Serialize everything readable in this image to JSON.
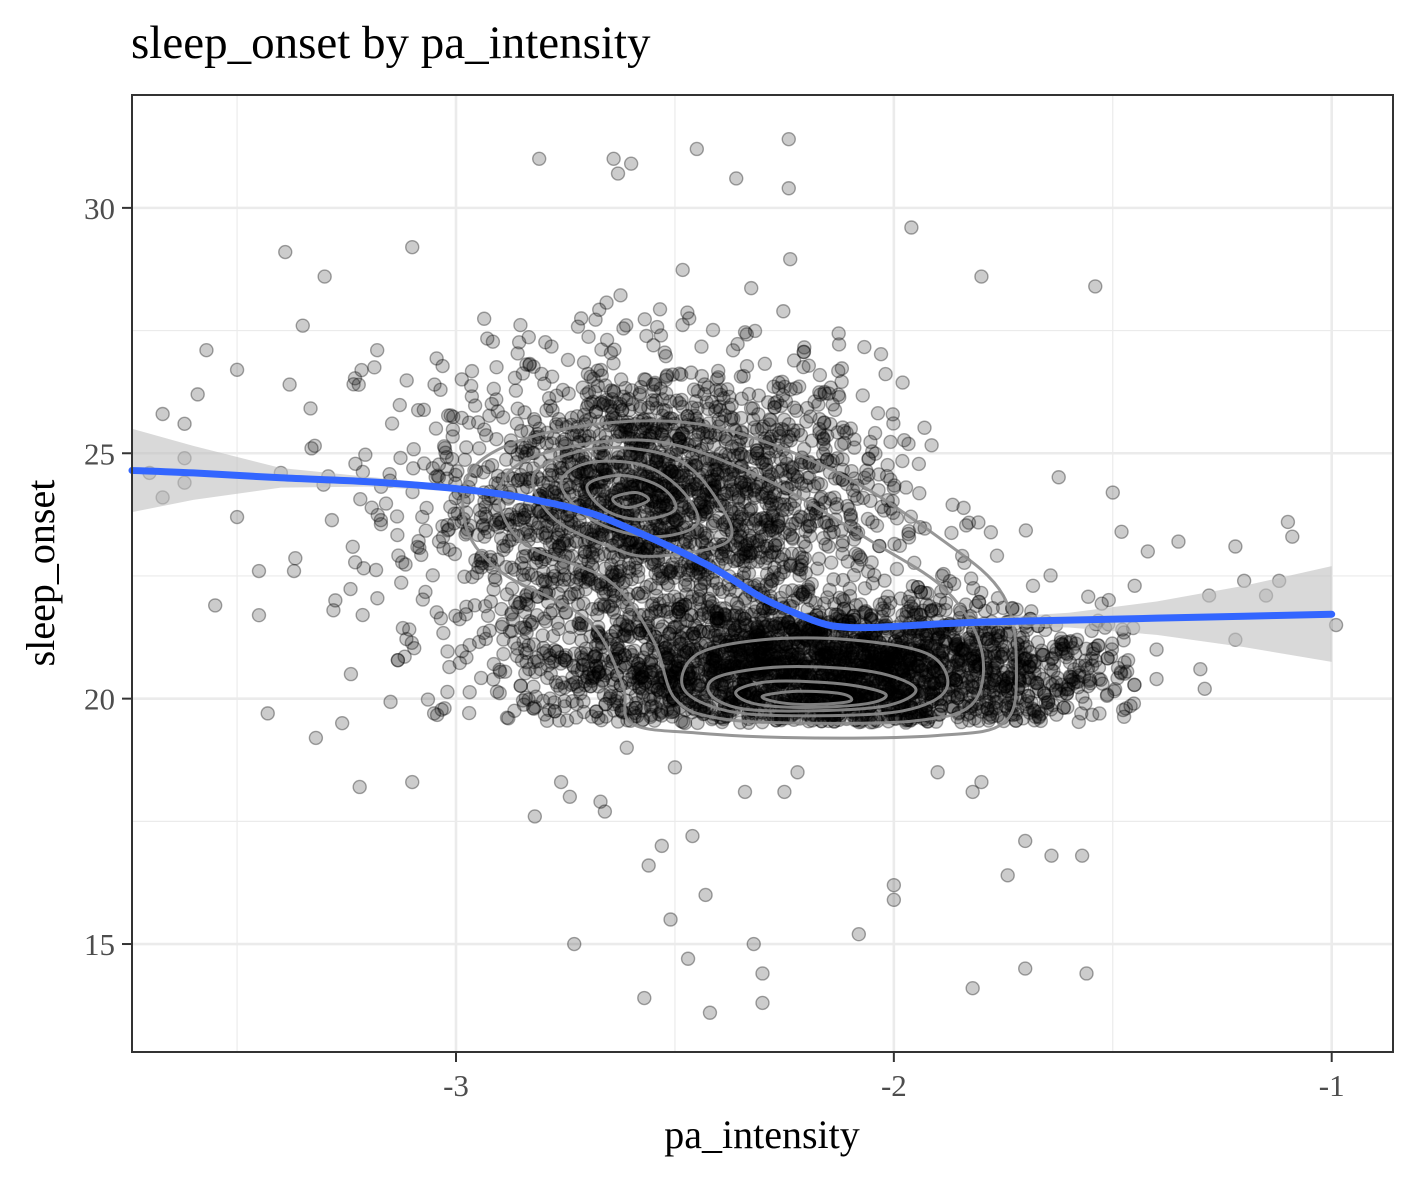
{
  "chart_data": {
    "type": "scatter",
    "title": "sleep_onset by pa_intensity",
    "xlabel": "pa_intensity",
    "ylabel": "sleep_onset",
    "xlim": [
      -3.74,
      -0.86
    ],
    "ylim": [
      12.8,
      32.3
    ],
    "x_ticks": [
      -3,
      -2,
      -1
    ],
    "x_tick_labels": [
      "-3",
      "-2",
      "-1"
    ],
    "y_ticks": [
      15,
      20,
      25,
      30
    ],
    "y_tick_labels": [
      "15",
      "20",
      "25",
      "30"
    ],
    "grid": true,
    "legend": "none",
    "point_color": "#000000",
    "point_alpha": 0.2,
    "point_count_estimate": 5000,
    "dense_cluster_points": [
      {
        "x_mean": -2.55,
        "y_mean": 24.0,
        "x_sd": 0.26,
        "y_sd": 1.5,
        "weight": 0.45
      },
      {
        "x_mean": -2.15,
        "y_mean": 20.6,
        "x_sd": 0.32,
        "y_sd": 0.7,
        "weight": 0.55
      }
    ],
    "outlier_points": [
      {
        "x": -3.7,
        "y": 24.6
      },
      {
        "x": -3.67,
        "y": 24.1
      },
      {
        "x": -3.67,
        "y": 25.8
      },
      {
        "x": -3.62,
        "y": 25.6
      },
      {
        "x": -3.62,
        "y": 24.4
      },
      {
        "x": -3.62,
        "y": 24.9
      },
      {
        "x": -3.59,
        "y": 26.2
      },
      {
        "x": -3.57,
        "y": 27.1
      },
      {
        "x": -3.55,
        "y": 21.9
      },
      {
        "x": -3.5,
        "y": 26.7
      },
      {
        "x": -3.5,
        "y": 23.7
      },
      {
        "x": -3.45,
        "y": 21.7
      },
      {
        "x": -3.45,
        "y": 22.6
      },
      {
        "x": -3.43,
        "y": 19.7
      },
      {
        "x": -3.4,
        "y": 24.6
      },
      {
        "x": -3.39,
        "y": 29.1
      },
      {
        "x": -3.38,
        "y": 26.4
      },
      {
        "x": -3.37,
        "y": 22.6
      },
      {
        "x": -3.35,
        "y": 27.6
      },
      {
        "x": -3.33,
        "y": 25.1
      },
      {
        "x": -3.32,
        "y": 19.2
      },
      {
        "x": -3.3,
        "y": 28.6
      },
      {
        "x": -3.28,
        "y": 21.8
      },
      {
        "x": -3.26,
        "y": 19.5
      },
      {
        "x": -3.24,
        "y": 20.5
      },
      {
        "x": -3.22,
        "y": 18.2
      },
      {
        "x": -3.18,
        "y": 27.1
      },
      {
        "x": -3.1,
        "y": 18.3
      },
      {
        "x": -3.1,
        "y": 29.2
      },
      {
        "x": -3.05,
        "y": 19.7
      },
      {
        "x": -2.82,
        "y": 17.6
      },
      {
        "x": -2.81,
        "y": 31.0
      },
      {
        "x": -2.76,
        "y": 18.3
      },
      {
        "x": -2.74,
        "y": 18.0
      },
      {
        "x": -2.73,
        "y": 15.0
      },
      {
        "x": -2.67,
        "y": 17.9
      },
      {
        "x": -2.66,
        "y": 17.7
      },
      {
        "x": -2.64,
        "y": 31.0
      },
      {
        "x": -2.63,
        "y": 30.7
      },
      {
        "x": -2.61,
        "y": 19.0
      },
      {
        "x": -2.6,
        "y": 30.9
      },
      {
        "x": -2.57,
        "y": 13.9
      },
      {
        "x": -2.56,
        "y": 16.6
      },
      {
        "x": -2.53,
        "y": 17.0
      },
      {
        "x": -2.51,
        "y": 15.5
      },
      {
        "x": -2.5,
        "y": 18.6
      },
      {
        "x": -2.47,
        "y": 14.7
      },
      {
        "x": -2.46,
        "y": 17.2
      },
      {
        "x": -2.45,
        "y": 31.2
      },
      {
        "x": -2.43,
        "y": 16.0
      },
      {
        "x": -2.42,
        "y": 13.6
      },
      {
        "x": -2.36,
        "y": 30.6
      },
      {
        "x": -2.34,
        "y": 18.1
      },
      {
        "x": -2.32,
        "y": 15.0
      },
      {
        "x": -2.3,
        "y": 14.4
      },
      {
        "x": -2.3,
        "y": 13.8
      },
      {
        "x": -2.24,
        "y": 31.4
      },
      {
        "x": -2.24,
        "y": 30.4
      },
      {
        "x": -2.25,
        "y": 18.1
      },
      {
        "x": -2.22,
        "y": 18.5
      },
      {
        "x": -2.08,
        "y": 15.2
      },
      {
        "x": -2.0,
        "y": 16.2
      },
      {
        "x": -2.0,
        "y": 15.9
      },
      {
        "x": -1.96,
        "y": 29.6
      },
      {
        "x": -1.9,
        "y": 18.5
      },
      {
        "x": -1.8,
        "y": 28.6
      },
      {
        "x": -1.8,
        "y": 18.3
      },
      {
        "x": -1.82,
        "y": 18.1
      },
      {
        "x": -1.82,
        "y": 14.1
      },
      {
        "x": -1.74,
        "y": 16.4
      },
      {
        "x": -1.7,
        "y": 17.1
      },
      {
        "x": -1.7,
        "y": 14.5
      },
      {
        "x": -1.64,
        "y": 16.8
      },
      {
        "x": -1.57,
        "y": 16.8
      },
      {
        "x": -1.56,
        "y": 14.4
      },
      {
        "x": -1.54,
        "y": 28.4
      },
      {
        "x": -1.5,
        "y": 24.2
      },
      {
        "x": -1.48,
        "y": 23.4
      },
      {
        "x": -1.47,
        "y": 19.8
      },
      {
        "x": -1.45,
        "y": 22.3
      },
      {
        "x": -1.42,
        "y": 23.0
      },
      {
        "x": -1.4,
        "y": 20.4
      },
      {
        "x": -1.4,
        "y": 21.0
      },
      {
        "x": -1.35,
        "y": 23.2
      },
      {
        "x": -1.3,
        "y": 20.6
      },
      {
        "x": -1.29,
        "y": 20.2
      },
      {
        "x": -1.28,
        "y": 22.1
      },
      {
        "x": -1.22,
        "y": 23.1
      },
      {
        "x": -1.22,
        "y": 21.2
      },
      {
        "x": -1.2,
        "y": 22.4
      },
      {
        "x": -1.15,
        "y": 22.1
      },
      {
        "x": -1.12,
        "y": 22.4
      },
      {
        "x": -1.1,
        "y": 23.6
      },
      {
        "x": -1.09,
        "y": 23.3
      },
      {
        "x": -0.99,
        "y": 21.5
      }
    ],
    "smooth_line": {
      "color": "#3366FF",
      "x": [
        -3.74,
        -3.6,
        -3.4,
        -3.2,
        -3.0,
        -2.85,
        -2.7,
        -2.6,
        -2.5,
        -2.4,
        -2.3,
        -2.2,
        -2.15,
        -2.1,
        -2.05,
        -2.0,
        -1.9,
        -1.8,
        -1.6,
        -1.4,
        -1.2,
        -1.0
      ],
      "y": [
        24.65,
        24.6,
        24.5,
        24.42,
        24.28,
        24.1,
        23.8,
        23.45,
        23.05,
        22.6,
        22.05,
        21.65,
        21.5,
        21.45,
        21.45,
        21.47,
        21.52,
        21.56,
        21.6,
        21.64,
        21.68,
        21.72
      ]
    },
    "confidence_band": {
      "color": "#bfbfbf",
      "x": [
        -3.74,
        -3.6,
        -3.4,
        -3.2,
        -3.0,
        -2.85,
        -2.7,
        -2.6,
        -2.5,
        -2.4,
        -2.3,
        -2.2,
        -2.15,
        -2.1,
        -2.05,
        -2.0,
        -1.9,
        -1.8,
        -1.6,
        -1.4,
        -1.2,
        -1.0
      ],
      "lower": [
        23.8,
        24.05,
        24.3,
        24.32,
        24.22,
        24.05,
        23.75,
        23.4,
        23.0,
        22.55,
        22.0,
        21.6,
        21.45,
        21.4,
        21.4,
        21.42,
        21.46,
        21.48,
        21.45,
        21.3,
        21.05,
        20.75
      ],
      "upper": [
        25.5,
        25.15,
        24.7,
        24.52,
        24.34,
        24.15,
        23.85,
        23.5,
        23.1,
        22.65,
        22.1,
        21.7,
        21.55,
        21.5,
        21.5,
        21.52,
        21.58,
        21.64,
        21.75,
        21.98,
        22.3,
        22.7
      ]
    },
    "density_contours": {
      "color": "#8c8c8c",
      "levels": [
        [
          [
            -2.2,
            19.2
          ],
          [
            -1.9,
            19.25
          ],
          [
            -1.75,
            19.5
          ],
          [
            -1.72,
            20.5
          ],
          [
            -1.75,
            22.1
          ],
          [
            -1.9,
            23.3
          ],
          [
            -2.15,
            24.7
          ],
          [
            -2.45,
            25.6
          ],
          [
            -2.75,
            25.5
          ],
          [
            -2.95,
            24.8
          ],
          [
            -2.98,
            23.6
          ],
          [
            -2.9,
            22.6
          ],
          [
            -2.7,
            21.6
          ],
          [
            -2.62,
            20.3
          ],
          [
            -2.6,
            19.5
          ],
          [
            -2.45,
            19.3
          ]
        ],
        [
          [
            -2.2,
            19.5
          ],
          [
            -1.95,
            19.55
          ],
          [
            -1.82,
            19.9
          ],
          [
            -1.8,
            21.0
          ],
          [
            -1.88,
            22.2
          ],
          [
            -2.05,
            23.2
          ],
          [
            -2.3,
            24.5
          ],
          [
            -2.55,
            25.25
          ],
          [
            -2.8,
            25.0
          ],
          [
            -2.9,
            24.3
          ],
          [
            -2.85,
            23.2
          ],
          [
            -2.65,
            22.4
          ],
          [
            -2.55,
            21.2
          ],
          [
            -2.5,
            20.0
          ],
          [
            -2.4,
            19.6
          ]
        ],
        [
          [
            -2.2,
            19.65
          ],
          [
            -1.98,
            19.75
          ],
          [
            -1.88,
            20.2
          ],
          [
            -1.92,
            20.9
          ],
          [
            -2.1,
            21.2
          ],
          [
            -2.3,
            21.2
          ],
          [
            -2.45,
            20.9
          ],
          [
            -2.48,
            20.2
          ],
          [
            -2.38,
            19.75
          ]
        ],
        [
          [
            -2.2,
            19.75
          ],
          [
            -2.02,
            19.85
          ],
          [
            -1.95,
            20.2
          ],
          [
            -2.05,
            20.55
          ],
          [
            -2.25,
            20.65
          ],
          [
            -2.4,
            20.45
          ],
          [
            -2.42,
            20.1
          ],
          [
            -2.35,
            19.8
          ]
        ],
        [
          [
            -2.2,
            19.82
          ],
          [
            -2.06,
            19.9
          ],
          [
            -2.02,
            20.1
          ],
          [
            -2.12,
            20.3
          ],
          [
            -2.28,
            20.35
          ],
          [
            -2.36,
            20.15
          ],
          [
            -2.32,
            19.9
          ]
        ],
        [
          [
            -2.18,
            19.88
          ],
          [
            -2.1,
            19.95
          ],
          [
            -2.12,
            20.1
          ],
          [
            -2.22,
            20.15
          ],
          [
            -2.3,
            20.05
          ],
          [
            -2.26,
            19.92
          ]
        ],
        [
          [
            -2.55,
            22.9
          ],
          [
            -2.38,
            23.2
          ],
          [
            -2.4,
            24.0
          ],
          [
            -2.5,
            24.9
          ],
          [
            -2.68,
            25.1
          ],
          [
            -2.82,
            24.6
          ],
          [
            -2.78,
            23.7
          ],
          [
            -2.65,
            23.1
          ]
        ],
        [
          [
            -2.55,
            23.3
          ],
          [
            -2.45,
            23.55
          ],
          [
            -2.48,
            24.2
          ],
          [
            -2.57,
            24.75
          ],
          [
            -2.7,
            24.8
          ],
          [
            -2.76,
            24.35
          ],
          [
            -2.68,
            23.6
          ]
        ],
        [
          [
            -2.58,
            23.65
          ],
          [
            -2.5,
            23.85
          ],
          [
            -2.53,
            24.3
          ],
          [
            -2.62,
            24.55
          ],
          [
            -2.7,
            24.35
          ],
          [
            -2.66,
            23.85
          ]
        ],
        [
          [
            -2.6,
            23.9
          ],
          [
            -2.56,
            24.05
          ],
          [
            -2.59,
            24.2
          ],
          [
            -2.64,
            24.1
          ],
          [
            -2.63,
            23.95
          ]
        ]
      ]
    }
  }
}
